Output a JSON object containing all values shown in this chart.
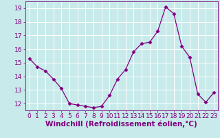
{
  "x": [
    0,
    1,
    2,
    3,
    4,
    5,
    6,
    7,
    8,
    9,
    10,
    11,
    12,
    13,
    14,
    15,
    16,
    17,
    18,
    19,
    20,
    21,
    22,
    23
  ],
  "y": [
    15.3,
    14.7,
    14.4,
    13.8,
    13.1,
    12.0,
    11.9,
    11.8,
    11.7,
    11.8,
    12.6,
    13.8,
    14.5,
    15.8,
    16.4,
    16.5,
    17.3,
    19.1,
    18.6,
    16.2,
    15.4,
    12.7,
    12.1,
    12.8
  ],
  "line_color": "#800080",
  "marker": "D",
  "marker_size": 2.5,
  "xlabel": "Windchill (Refroidissement éolien,°C)",
  "ylabel": "",
  "title": "",
  "xlim": [
    -0.5,
    23.5
  ],
  "ylim": [
    11.5,
    19.5
  ],
  "yticks": [
    12,
    13,
    14,
    15,
    16,
    17,
    18,
    19
  ],
  "xticks": [
    0,
    1,
    2,
    3,
    4,
    5,
    6,
    7,
    8,
    9,
    10,
    11,
    12,
    13,
    14,
    15,
    16,
    17,
    18,
    19,
    20,
    21,
    22,
    23
  ],
  "background_color": "#c8eaea",
  "grid_color": "#ffffff",
  "tick_color": "#800080",
  "label_color": "#800080",
  "tick_fontsize": 6.5,
  "xlabel_fontsize": 7.5
}
